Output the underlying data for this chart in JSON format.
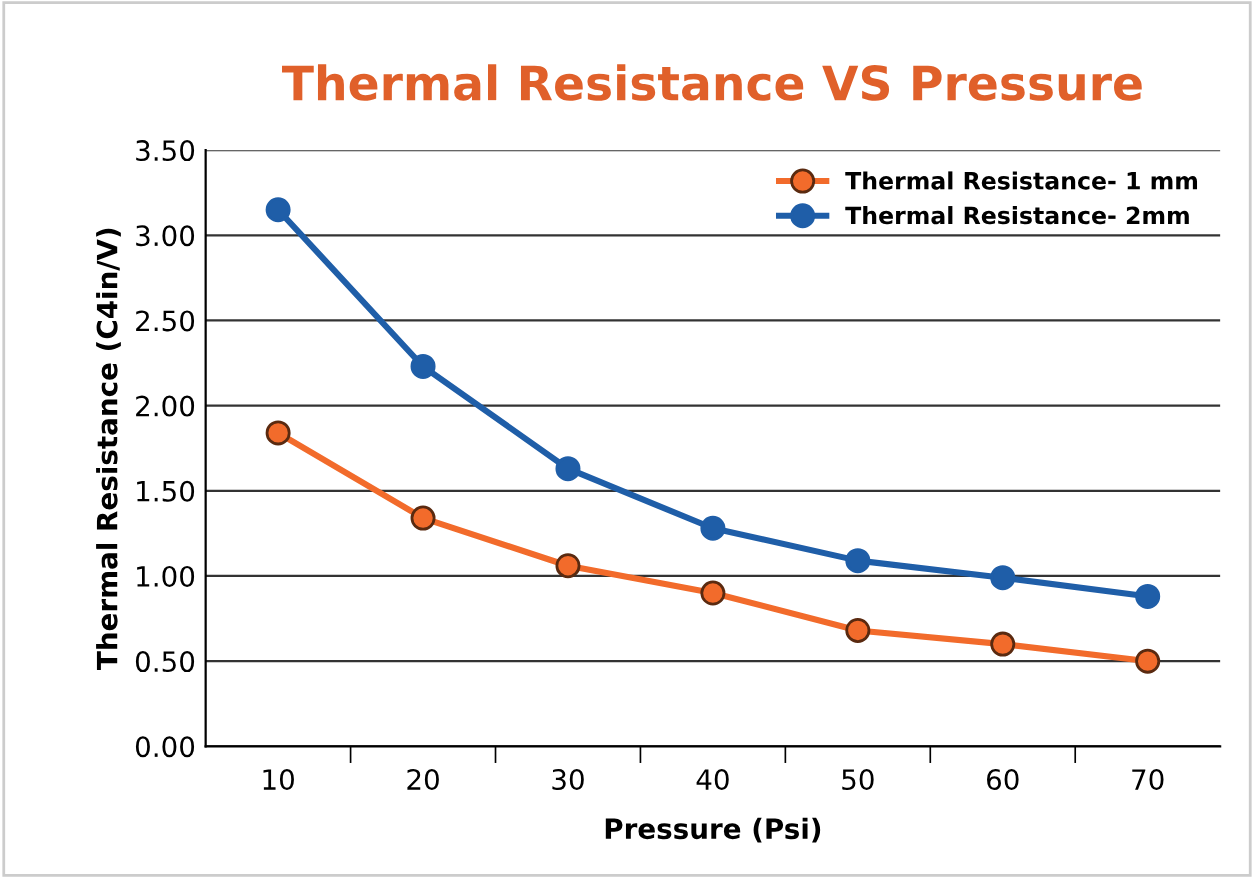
{
  "chart_data": {
    "type": "line",
    "title": "Thermal Resistance VS Pressure",
    "xlabel": "Pressure (Psi)",
    "ylabel": "Thermal Resistance (C4in/V)",
    "categories": [
      "10",
      "20",
      "30",
      "40",
      "50",
      "60",
      "70"
    ],
    "series": [
      {
        "name": "Thermal Resistance- 1 mm",
        "color": "#f26b2b",
        "values": [
          1.84,
          1.34,
          1.06,
          0.9,
          0.68,
          0.6,
          0.5
        ]
      },
      {
        "name": "Thermal Resistance- 2mm",
        "color": "#1f5ea8",
        "values": [
          3.15,
          2.23,
          1.63,
          1.28,
          1.09,
          0.99,
          0.88
        ]
      }
    ],
    "ylim": [
      0,
      3.5
    ],
    "yticks": [
      {
        "value": 0,
        "label": "0.00"
      },
      {
        "value": 0.5,
        "label": "0.50"
      },
      {
        "value": 1,
        "label": "1.00"
      },
      {
        "value": 1.5,
        "label": "1.50"
      },
      {
        "value": 2,
        "label": "2.00"
      },
      {
        "value": 2.5,
        "label": "2.50"
      },
      {
        "value": 3,
        "label": "3.00"
      },
      {
        "value": 3.5,
        "label": "3.50"
      }
    ],
    "grid": "y",
    "legend": "top right",
    "marker": "circle",
    "line_style": "solid"
  }
}
